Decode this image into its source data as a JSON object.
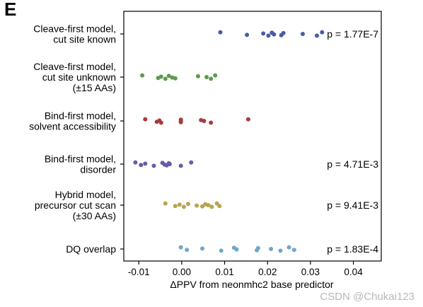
{
  "panel_label": "E",
  "watermark": "CSDN @Chukai123",
  "chart_data": {
    "type": "scatter",
    "title": "",
    "xlabel": "ΔPPV from neonmhc2 base predictor",
    "ylabel": "",
    "xlim": [
      -0.0135,
      0.0465
    ],
    "xticks": [
      -0.01,
      0.0,
      0.01,
      0.02,
      0.03,
      0.04
    ],
    "xtick_labels": [
      "-0.01",
      "0.00",
      "0.01",
      "0.02",
      "0.03",
      "0.04"
    ],
    "grid": false,
    "legend": "none",
    "series": [
      {
        "label_lines": [
          "Cleave-first model,",
          "cut site known"
        ],
        "color": "#4a5aa8",
        "p_value": "p = 1.77E-7",
        "values": [
          0.009,
          0.0152,
          0.019,
          0.0202,
          0.021,
          0.0215,
          0.0232,
          0.0237,
          0.0282,
          0.0315,
          0.0327
        ]
      },
      {
        "label_lines": [
          "Cleave-first model,",
          "cut site unknown",
          "(±15 AAs)"
        ],
        "color": "#5c9a4e",
        "p_value": "",
        "values": [
          -0.0092,
          -0.0055,
          -0.0048,
          -0.0038,
          -0.003,
          -0.0022,
          -0.0015,
          0.0038,
          0.0058,
          0.0068,
          0.0078
        ]
      },
      {
        "label_lines": [
          "Bind-first model,",
          "solvent accessibility"
        ],
        "color": "#a83a3c",
        "p_value": "",
        "values": [
          -0.0085,
          -0.0058,
          -0.0052,
          -0.0048,
          -0.0002,
          -0.0002,
          -0.0002,
          0.0045,
          0.0052,
          0.0068,
          0.0155
        ]
      },
      {
        "label_lines": [
          "Bind-first model,",
          "disorder"
        ],
        "color": "#6a5aa8",
        "p_value": "p = 4.71E-3",
        "values": [
          -0.0108,
          -0.0095,
          -0.0085,
          -0.0065,
          -0.0045,
          -0.004,
          -0.0035,
          -0.003,
          -0.0028,
          -0.0002,
          0.0022
        ]
      },
      {
        "label_lines": [
          "Hybrid model,",
          "precursor cut scan",
          "(±30 AAs)"
        ],
        "color": "#b8a44c",
        "p_value": "p = 9.41E-3",
        "values": [
          -0.0038,
          -0.0015,
          -0.0005,
          0.0005,
          0.0015,
          0.0035,
          0.0048,
          0.0055,
          0.0062,
          0.007,
          0.0082,
          0.0088
        ]
      },
      {
        "label_lines": [
          "DQ overlap"
        ],
        "color": "#6fa8c8",
        "p_value": "p = 1.83E-4",
        "values": [
          -0.0002,
          0.0012,
          0.0048,
          0.0092,
          0.0122,
          0.0128,
          0.0175,
          0.0178,
          0.0208,
          0.023,
          0.025,
          0.0262
        ]
      }
    ]
  }
}
